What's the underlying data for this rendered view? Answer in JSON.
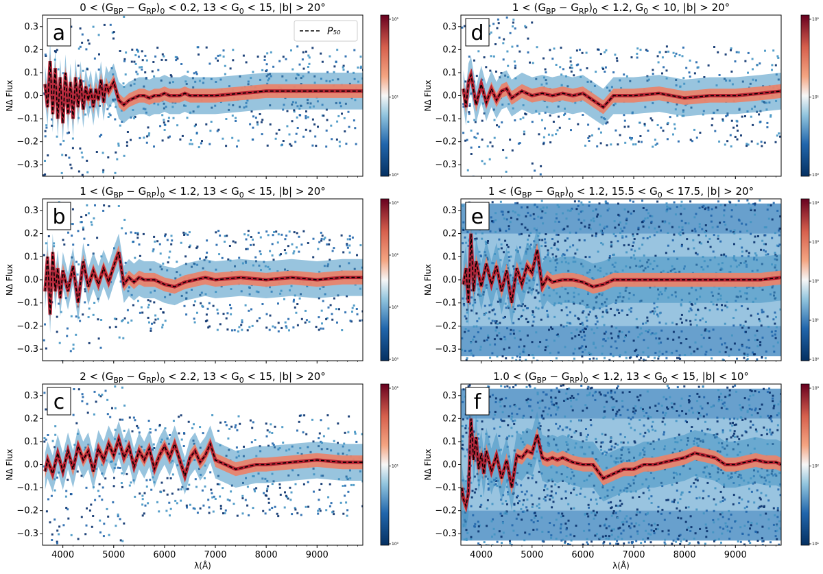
{
  "chart_data": [
    {
      "type": "heatmap",
      "panel_label": "a",
      "title": "0 < (G_BP − G_RP)_0 < 0.2, 13 < G_0 < 15, |b| > 20°",
      "xlabel": "",
      "ylabel": "NΔ Flux",
      "xlim": [
        3600,
        9900
      ],
      "ylim": [
        -0.35,
        0.35
      ],
      "yticks": [
        "0.3",
        "0.2",
        "0.1",
        "0.0",
        "−0.1",
        "−0.2",
        "−0.3"
      ],
      "xticks": [],
      "colorbar": {
        "scale": "log",
        "ticks": [
          "10²",
          "10¹",
          "10⁰"
        ]
      },
      "legend": {
        "entries": [
          "P₅₀"
        ],
        "placement": "top-right"
      },
      "series": [
        {
          "name": "P₅₀",
          "style": "dashed",
          "x": [
            3650,
            3700,
            3750,
            3800,
            3850,
            3900,
            3950,
            4000,
            4050,
            4100,
            4150,
            4200,
            4250,
            4300,
            4350,
            4400,
            4450,
            4500,
            4550,
            4600,
            4650,
            4700,
            4750,
            4800,
            4850,
            4900,
            5000,
            5100,
            5200,
            5300,
            5400,
            5500,
            5600,
            5700,
            5800,
            5900,
            6000,
            6100,
            6200,
            6300,
            6400,
            6500,
            7000,
            7500,
            8000,
            8500,
            9000,
            9500,
            9900
          ],
          "y": [
            0.05,
            -0.05,
            0.15,
            -0.08,
            0.12,
            -0.1,
            0.08,
            -0.12,
            0.1,
            -0.08,
            0.06,
            -0.1,
            0.08,
            -0.05,
            0.07,
            -0.06,
            0.04,
            -0.02,
            0.03,
            -0.05,
            0.03,
            -0.02,
            0.07,
            -0.03,
            0.05,
            0.02,
            0.06,
            -0.02,
            -0.04,
            -0.02,
            -0.01,
            0.0,
            0.0,
            -0.01,
            0.0,
            0.0,
            0.01,
            0.0,
            0.0,
            0.0,
            0.01,
            0.0,
            0.0,
            0.01,
            0.02,
            0.02,
            0.02,
            0.02,
            0.02
          ]
        }
      ]
    },
    {
      "type": "heatmap",
      "panel_label": "b",
      "title": "1 < (G_BP − G_RP)_0 < 1.2, 13 < G_0 < 15, |b| > 20°",
      "xlabel": "",
      "ylabel": "NΔ Flux",
      "xlim": [
        3600,
        9900
      ],
      "ylim": [
        -0.35,
        0.35
      ],
      "yticks": [
        "0.3",
        "0.2",
        "0.1",
        "0.0",
        "−0.1",
        "−0.2",
        "−0.3"
      ],
      "xticks": [],
      "colorbar": {
        "scale": "log",
        "ticks": [
          "10³",
          "10²",
          "10¹",
          "10⁰"
        ]
      },
      "series": [
        {
          "name": "P₅₀",
          "style": "dashed",
          "x": [
            3650,
            3700,
            3750,
            3800,
            3850,
            3900,
            3950,
            4000,
            4100,
            4200,
            4300,
            4400,
            4500,
            4600,
            4700,
            4800,
            4900,
            5000,
            5100,
            5200,
            5300,
            5400,
            5500,
            5600,
            5800,
            6000,
            6200,
            6400,
            6600,
            6800,
            7000,
            7500,
            8000,
            8500,
            9000,
            9500,
            9900
          ],
          "y": [
            -0.05,
            0.1,
            -0.15,
            0.12,
            -0.05,
            0.05,
            -0.08,
            0.04,
            -0.05,
            0.06,
            -0.1,
            0.08,
            -0.03,
            0.04,
            -0.02,
            0.05,
            -0.01,
            0.06,
            0.12,
            -0.02,
            0.01,
            -0.01,
            0.01,
            0.0,
            0.0,
            -0.02,
            -0.03,
            -0.01,
            0.0,
            0.01,
            0.0,
            0.01,
            0.0,
            0.01,
            0.0,
            0.01,
            0.01
          ]
        }
      ]
    },
    {
      "type": "heatmap",
      "panel_label": "c",
      "title": "2 < (G_BP − G_RP)_0 < 2.2, 13 < G_0 < 15, |b| > 20°",
      "xlabel": "λ(Å)",
      "ylabel": "NΔ Flux",
      "xlim": [
        3600,
        9900
      ],
      "ylim": [
        -0.35,
        0.35
      ],
      "yticks": [
        "0.3",
        "0.2",
        "0.1",
        "0.0",
        "−0.1",
        "−0.2",
        "−0.3"
      ],
      "xticks": [
        "4000",
        "5000",
        "6000",
        "7000",
        "8000",
        "9000"
      ],
      "colorbar": {
        "scale": "log",
        "ticks": [
          "10²",
          "10¹",
          "10⁰"
        ]
      },
      "series": [
        {
          "name": "P₅₀",
          "style": "dashed",
          "x": [
            3650,
            3700,
            3800,
            3900,
            4000,
            4100,
            4200,
            4300,
            4400,
            4500,
            4600,
            4700,
            4800,
            4900,
            5000,
            5100,
            5200,
            5300,
            5400,
            5500,
            5600,
            5700,
            5800,
            5900,
            6000,
            6100,
            6200,
            6300,
            6400,
            6500,
            6600,
            6700,
            6800,
            6900,
            7000,
            7200,
            7400,
            7600,
            7800,
            8000,
            8500,
            9000,
            9500,
            9900
          ],
          "y": [
            -0.03,
            0.02,
            -0.04,
            0.05,
            -0.03,
            0.06,
            -0.02,
            0.08,
            0.02,
            0.06,
            -0.03,
            0.07,
            0.02,
            0.09,
            0.04,
            0.11,
            0.03,
            0.08,
            -0.01,
            0.06,
            0.02,
            0.07,
            -0.02,
            0.04,
            0.08,
            0.03,
            0.09,
            0.02,
            -0.05,
            0.03,
            0.06,
            0.01,
            0.04,
            0.09,
            0.02,
            0.0,
            -0.02,
            -0.01,
            0.0,
            0.0,
            0.01,
            0.02,
            0.01,
            0.01
          ]
        }
      ]
    },
    {
      "type": "heatmap",
      "panel_label": "d",
      "title": "1 < (G_BP − G_RP)_0 < 1.2, G_0 < 10, |b| > 20°",
      "xlabel": "",
      "ylabel": "NΔ Flux",
      "xlim": [
        3600,
        9900
      ],
      "ylim": [
        -0.35,
        0.35
      ],
      "yticks": [
        "0.3",
        "0.2",
        "0.1",
        "0.0",
        "−0.1",
        "−0.2",
        "−0.3"
      ],
      "xticks": [],
      "colorbar": {
        "scale": "log",
        "ticks": [
          "10²",
          "10¹",
          "10⁰"
        ]
      },
      "series": [
        {
          "name": "P₅₀",
          "style": "dashed",
          "x": [
            3650,
            3700,
            3750,
            3800,
            3900,
            4000,
            4100,
            4200,
            4300,
            4400,
            4500,
            4600,
            4800,
            5000,
            5200,
            5400,
            5600,
            5800,
            6000,
            6200,
            6400,
            6600,
            7000,
            7500,
            8000,
            8500,
            9000,
            9500,
            9900
          ],
          "y": [
            0.03,
            -0.05,
            0.06,
            0.09,
            -0.04,
            0.05,
            -0.03,
            0.03,
            -0.02,
            0.02,
            0.03,
            -0.01,
            0.02,
            0.0,
            0.01,
            0.0,
            0.01,
            0.0,
            0.01,
            -0.02,
            -0.05,
            0.0,
            0.0,
            0.01,
            -0.01,
            0.0,
            0.0,
            0.01,
            0.02
          ]
        }
      ]
    },
    {
      "type": "heatmap",
      "panel_label": "e",
      "title": "1 < (G_BP − G_RP)_0 < 1.2, 15.5 < G_0 < 17.5, |b| > 20°",
      "xlabel": "",
      "ylabel": "NΔ Flux",
      "xlim": [
        3600,
        9900
      ],
      "ylim": [
        -0.35,
        0.35
      ],
      "yticks": [
        "0.3",
        "0.2",
        "0.1",
        "0.0",
        "−0.1",
        "−0.2",
        "−0.3"
      ],
      "xticks": [],
      "colorbar": {
        "scale": "log",
        "ticks": [
          "10⁴",
          "10³",
          "10²",
          "10¹",
          "10⁰"
        ]
      },
      "series": [
        {
          "name": "P₅₀",
          "style": "dashed",
          "x": [
            3650,
            3700,
            3750,
            3800,
            3850,
            3900,
            4000,
            4100,
            4200,
            4300,
            4400,
            4500,
            4600,
            4700,
            4800,
            4900,
            5000,
            5100,
            5200,
            5300,
            5400,
            5600,
            5800,
            6000,
            6200,
            6400,
            6600,
            7000,
            7500,
            8000,
            8500,
            9000,
            9500,
            9900
          ],
          "y": [
            -0.02,
            0.05,
            -0.1,
            0.2,
            -0.05,
            0.08,
            -0.03,
            0.07,
            -0.02,
            0.06,
            -0.05,
            0.04,
            -0.1,
            0.05,
            -0.02,
            0.06,
            0.03,
            0.13,
            -0.03,
            0.01,
            -0.01,
            0.0,
            0.0,
            -0.01,
            -0.03,
            -0.02,
            0.0,
            0.0,
            0.0,
            0.0,
            0.0,
            0.0,
            0.0,
            0.01
          ]
        }
      ]
    },
    {
      "type": "heatmap",
      "panel_label": "f",
      "title": "1.0 < (G_BP − G_RP)_0 < 1.2, 13 < G_0 < 15, |b| < 10°",
      "xlabel": "λ(Å)",
      "ylabel": "NΔ Flux",
      "xlim": [
        3600,
        9900
      ],
      "ylim": [
        -0.35,
        0.35
      ],
      "yticks": [
        "0.3",
        "0.2",
        "0.1",
        "0.0",
        "−0.1",
        "−0.2",
        "−0.3"
      ],
      "xticks": [
        "4000",
        "5000",
        "6000",
        "7000",
        "8000",
        "9000"
      ],
      "colorbar": {
        "scale": "log",
        "ticks": [
          "10³",
          "10²",
          "10¹"
        ]
      },
      "series": [
        {
          "name": "P₅₀",
          "style": "dashed",
          "x": [
            3620,
            3650,
            3700,
            3750,
            3800,
            3850,
            3900,
            3950,
            4000,
            4050,
            4100,
            4200,
            4300,
            4400,
            4500,
            4600,
            4700,
            4800,
            4900,
            5000,
            5100,
            5200,
            5300,
            5400,
            5500,
            5600,
            5800,
            6000,
            6200,
            6400,
            6600,
            6800,
            7000,
            7200,
            7400,
            7600,
            7800,
            8000,
            8200,
            8400,
            8600,
            8800,
            9000,
            9200,
            9400,
            9600,
            9800,
            9900
          ],
          "y": [
            -0.1,
            -0.15,
            -0.18,
            -0.12,
            0.2,
            0.02,
            0.12,
            -0.02,
            0.05,
            -0.04,
            0.06,
            -0.03,
            0.04,
            -0.06,
            0.02,
            -0.1,
            0.04,
            0.03,
            0.06,
            0.05,
            0.13,
            0.03,
            0.02,
            0.03,
            0.02,
            0.03,
            0.01,
            0.0,
            0.0,
            -0.06,
            -0.04,
            -0.02,
            -0.02,
            0.0,
            0.0,
            0.01,
            0.02,
            0.03,
            0.05,
            0.04,
            0.03,
            0.0,
            0.0,
            0.01,
            0.02,
            0.01,
            0.01,
            0.0
          ]
        }
      ]
    }
  ]
}
